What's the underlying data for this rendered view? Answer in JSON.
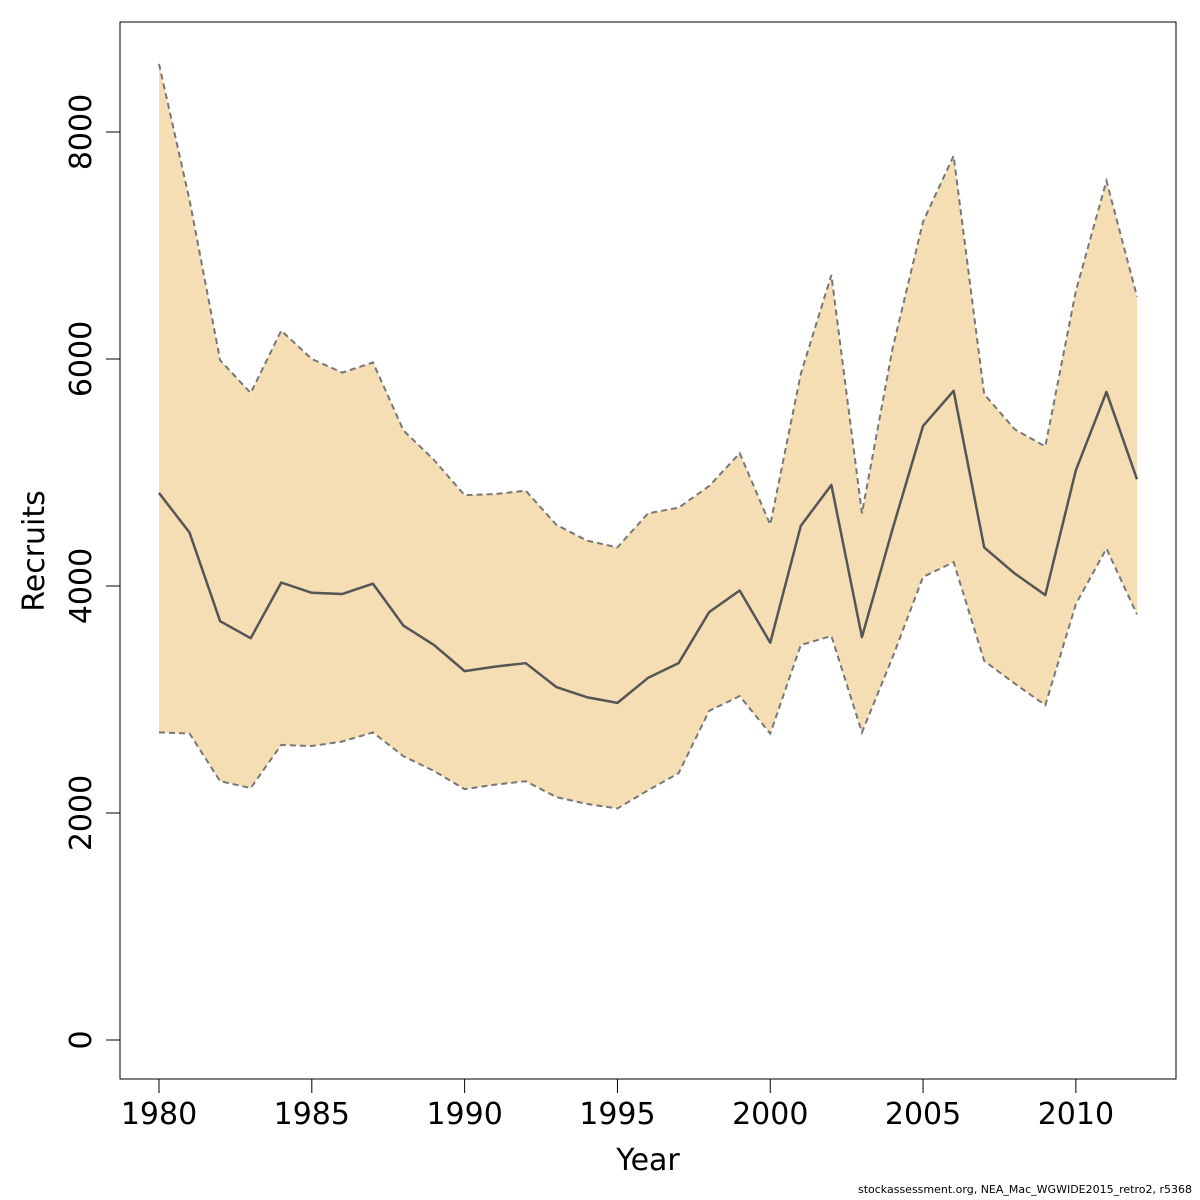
{
  "chart_data": {
    "type": "line",
    "title": "",
    "xlabel": "Year",
    "ylabel": "Recruits",
    "xlim": [
      1980,
      2012
    ],
    "ylim": [
      0,
      8600
    ],
    "x_ticks": [
      "1980",
      "1985",
      "1990",
      "1995",
      "2000",
      "2005",
      "2010"
    ],
    "y_ticks": [
      "0",
      "2000",
      "4000",
      "6000",
      "8000"
    ],
    "grid": false,
    "legend": "none",
    "x": [
      1980,
      1981,
      1982,
      1983,
      1984,
      1985,
      1986,
      1987,
      1988,
      1989,
      1990,
      1991,
      1992,
      1993,
      1994,
      1995,
      1996,
      1997,
      1998,
      1999,
      2000,
      2001,
      2002,
      2003,
      2004,
      2005,
      2006,
      2007,
      2008,
      2009,
      2010,
      2011,
      2012
    ],
    "series": [
      {
        "values": [
          4820,
          4470,
          3690,
          3540,
          4030,
          3940,
          3930,
          4020,
          3650,
          3480,
          3250,
          3290,
          3320,
          3110,
          3020,
          2970,
          3190,
          3320,
          3770,
          3960,
          3500,
          4530,
          4890,
          3550,
          4500,
          5410,
          5720,
          4340,
          4110,
          3920,
          5020,
          5710,
          4940
        ],
        "color": "#555555",
        "style": "solid"
      }
    ],
    "confidence_band": {
      "upper": [
        8600,
        7400,
        5990,
        5700,
        6250,
        6000,
        5880,
        5970,
        5370,
        5110,
        4800,
        4810,
        4840,
        4540,
        4400,
        4340,
        4640,
        4690,
        4880,
        5170,
        4540,
        5870,
        6740,
        4640,
        6090,
        7210,
        7790,
        5690,
        5380,
        5230,
        6600,
        7570,
        6550
      ],
      "lower": [
        2710,
        2700,
        2280,
        2220,
        2600,
        2590,
        2630,
        2710,
        2500,
        2370,
        2210,
        2250,
        2280,
        2140,
        2080,
        2040,
        2200,
        2350,
        2900,
        3030,
        2700,
        3480,
        3560,
        2710,
        3370,
        4080,
        4210,
        3340,
        3140,
        2950,
        3840,
        4330,
        3750
      ],
      "fill_color": "#f5deb3",
      "line_color": "#777777",
      "line_style": "dashed"
    }
  },
  "footnote": "stockassessment.org, NEA_Mac_WGWIDE2015_retro2, r5368"
}
